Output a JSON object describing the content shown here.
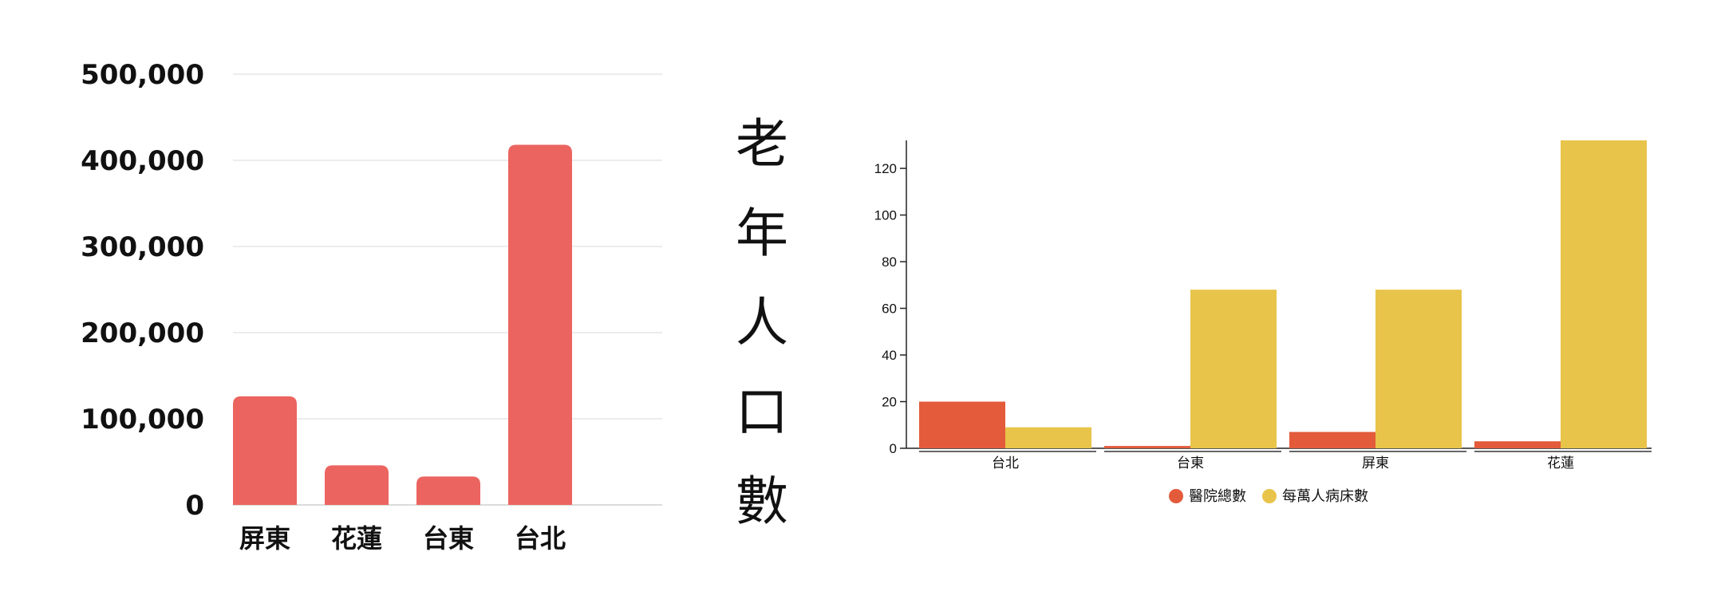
{
  "side_label": "老年人口數",
  "colors": {
    "left_bar": "#ec6460",
    "hospital": "#e35b3b",
    "beds": "#e8c44a",
    "grid": "#e6e6e6",
    "text": "#111111"
  },
  "chart_data": [
    {
      "type": "bar",
      "categories": [
        "屏東",
        "花蓮",
        "台東",
        "台北"
      ],
      "values": [
        126000,
        46000,
        33000,
        418000
      ],
      "ylim": [
        0,
        500000
      ],
      "yticks": [
        0,
        100000,
        200000,
        300000,
        400000,
        500000
      ],
      "ytick_labels": [
        "0",
        "100,000",
        "200,000",
        "300,000",
        "400,000",
        "500,000"
      ],
      "grid": true,
      "title": "",
      "xlabel": "",
      "ylabel": ""
    },
    {
      "type": "bar",
      "categories": [
        "台北",
        "台東",
        "屏東",
        "花蓮"
      ],
      "series": [
        {
          "name": "醫院總數",
          "values": [
            20,
            1,
            7,
            3
          ]
        },
        {
          "name": "每萬人病床數",
          "values": [
            9,
            68,
            68,
            132
          ]
        }
      ],
      "ylim": [
        0,
        132
      ],
      "yticks": [
        0,
        20,
        40,
        60,
        80,
        100,
        120
      ],
      "ytick_labels": [
        "0",
        "20",
        "40",
        "60",
        "80",
        "100",
        "120"
      ],
      "grid": false,
      "legend": "bottom-center",
      "title": "",
      "xlabel": "",
      "ylabel": ""
    }
  ]
}
